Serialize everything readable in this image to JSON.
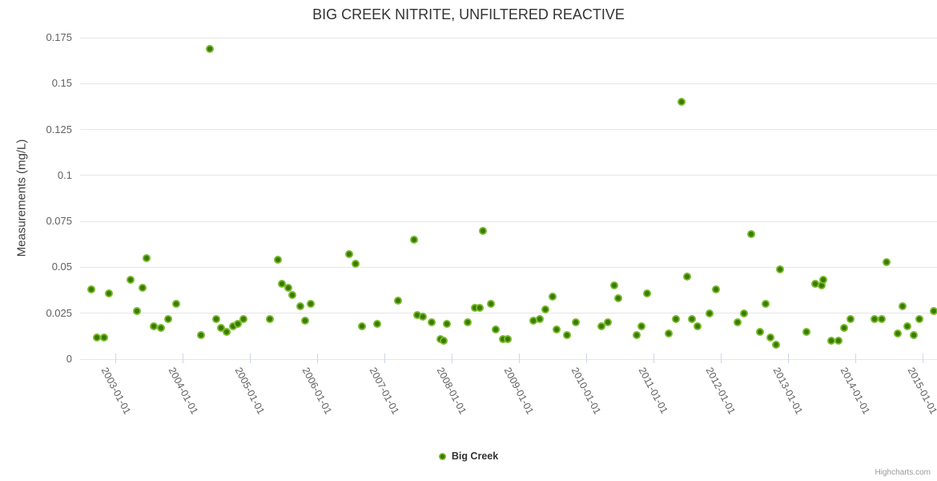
{
  "chart_data": {
    "type": "scatter",
    "title": "BIG CREEK NITRITE, UNFILTERED REACTIVE",
    "ylabel": "Measurements (mg/L)",
    "xlabel": "",
    "ylim": [
      0,
      0.175
    ],
    "yticks": [
      0,
      0.025,
      0.05,
      0.075,
      0.1,
      0.125,
      0.15,
      0.175
    ],
    "ytick_labels": [
      "0",
      "0.025",
      "0.05",
      "0.075",
      "0.1",
      "0.125",
      "0.15",
      "0.175"
    ],
    "xlim_years": [
      2002.47,
      2015.21
    ],
    "xticks": [
      {
        "year": 2003,
        "label": "2003-01-01"
      },
      {
        "year": 2004,
        "label": "2004-01-01"
      },
      {
        "year": 2005,
        "label": "2005-01-01"
      },
      {
        "year": 2006,
        "label": "2006-01-01"
      },
      {
        "year": 2007,
        "label": "2007-01-01"
      },
      {
        "year": 2008,
        "label": "2008-01-01"
      },
      {
        "year": 2009,
        "label": "2009-01-01"
      },
      {
        "year": 2010,
        "label": "2010-01-01"
      },
      {
        "year": 2011,
        "label": "2011-01-01"
      },
      {
        "year": 2012,
        "label": "2012-01-01"
      },
      {
        "year": 2013,
        "label": "2013-01-01"
      },
      {
        "year": 2014,
        "label": "2014-01-01"
      },
      {
        "year": 2015,
        "label": "2015-01-01"
      }
    ],
    "grid": true,
    "legend_position": "bottom-center",
    "credits": "Highcharts.com",
    "series": [
      {
        "name": "Big Creek",
        "color": "#77ba2a",
        "marker_inner_color": "#3b7a03",
        "points": [
          [
            2002.64,
            0.038
          ],
          [
            2002.72,
            0.012
          ],
          [
            2002.83,
            0.012
          ],
          [
            2002.9,
            0.036
          ],
          [
            2003.22,
            0.043
          ],
          [
            2003.31,
            0.026
          ],
          [
            2003.4,
            0.039
          ],
          [
            2003.46,
            0.055
          ],
          [
            2003.56,
            0.018
          ],
          [
            2003.67,
            0.017
          ],
          [
            2003.78,
            0.022
          ],
          [
            2003.9,
            0.03
          ],
          [
            2004.27,
            0.013
          ],
          [
            2004.4,
            0.169
          ],
          [
            2004.5,
            0.022
          ],
          [
            2004.56,
            0.017
          ],
          [
            2004.65,
            0.015
          ],
          [
            2004.75,
            0.018
          ],
          [
            2004.82,
            0.019
          ],
          [
            2004.9,
            0.022
          ],
          [
            2005.29,
            0.022
          ],
          [
            2005.41,
            0.054
          ],
          [
            2005.47,
            0.041
          ],
          [
            2005.57,
            0.039
          ],
          [
            2005.62,
            0.035
          ],
          [
            2005.75,
            0.029
          ],
          [
            2005.82,
            0.021
          ],
          [
            2005.9,
            0.03
          ],
          [
            2006.47,
            0.057
          ],
          [
            2006.57,
            0.052
          ],
          [
            2006.66,
            0.018
          ],
          [
            2006.89,
            0.019
          ],
          [
            2007.2,
            0.032
          ],
          [
            2007.44,
            0.065
          ],
          [
            2007.48,
            0.024
          ],
          [
            2007.57,
            0.023
          ],
          [
            2007.7,
            0.02
          ],
          [
            2007.83,
            0.011
          ],
          [
            2007.88,
            0.01
          ],
          [
            2007.92,
            0.019
          ],
          [
            2008.23,
            0.02
          ],
          [
            2008.34,
            0.028
          ],
          [
            2008.41,
            0.028
          ],
          [
            2008.46,
            0.07
          ],
          [
            2008.58,
            0.03
          ],
          [
            2008.65,
            0.016
          ],
          [
            2008.76,
            0.011
          ],
          [
            2008.83,
            0.011
          ],
          [
            2009.21,
            0.021
          ],
          [
            2009.31,
            0.022
          ],
          [
            2009.39,
            0.027
          ],
          [
            2009.5,
            0.034
          ],
          [
            2009.56,
            0.016
          ],
          [
            2009.71,
            0.013
          ],
          [
            2009.84,
            0.02
          ],
          [
            2010.22,
            0.018
          ],
          [
            2010.32,
            0.02
          ],
          [
            2010.41,
            0.04
          ],
          [
            2010.47,
            0.033
          ],
          [
            2010.75,
            0.013
          ],
          [
            2010.82,
            0.018
          ],
          [
            2010.9,
            0.036
          ],
          [
            2011.22,
            0.014
          ],
          [
            2011.33,
            0.022
          ],
          [
            2011.41,
            0.14
          ],
          [
            2011.5,
            0.045
          ],
          [
            2011.57,
            0.022
          ],
          [
            2011.65,
            0.018
          ],
          [
            2011.83,
            0.025
          ],
          [
            2011.92,
            0.038
          ],
          [
            2012.25,
            0.02
          ],
          [
            2012.34,
            0.025
          ],
          [
            2012.45,
            0.068
          ],
          [
            2012.58,
            0.015
          ],
          [
            2012.66,
            0.03
          ],
          [
            2012.73,
            0.012
          ],
          [
            2012.82,
            0.008
          ],
          [
            2012.88,
            0.049
          ],
          [
            2013.27,
            0.015
          ],
          [
            2013.4,
            0.041
          ],
          [
            2013.49,
            0.04
          ],
          [
            2013.52,
            0.043
          ],
          [
            2013.64,
            0.01
          ],
          [
            2013.74,
            0.01
          ],
          [
            2013.83,
            0.017
          ],
          [
            2013.92,
            0.022
          ],
          [
            2014.28,
            0.022
          ],
          [
            2014.39,
            0.022
          ],
          [
            2014.46,
            0.053
          ],
          [
            2014.63,
            0.014
          ],
          [
            2014.7,
            0.029
          ],
          [
            2014.77,
            0.018
          ],
          [
            2014.87,
            0.013
          ],
          [
            2014.95,
            0.022
          ],
          [
            2015.16,
            0.026
          ]
        ]
      }
    ]
  },
  "colors": {
    "background": "#ffffff",
    "grid": "#e6e6e6",
    "axis_line": "#ccd6eb",
    "title_text": "#333333",
    "axis_label_text": "#606060",
    "legend_text": "#333333",
    "credits_text": "#999999"
  }
}
